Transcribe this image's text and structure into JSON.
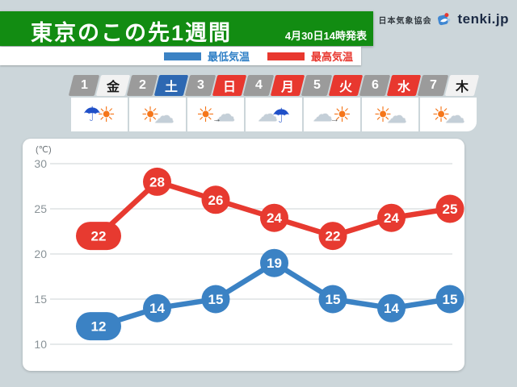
{
  "header": {
    "title": "東京のこの先1週間",
    "issued": "4月30日14時発表",
    "agency": "日本気象協会",
    "brand": "tenki.jp"
  },
  "legend": {
    "min_label": "最低気温",
    "max_label": "最高気温"
  },
  "colors": {
    "banner_green": "#128c12",
    "min_blue": "#3b82c4",
    "max_red": "#e73a30",
    "saturday_blue": "#2d68b2",
    "holiday_red": "#e8382f",
    "date_number_gray": "#9b9b9b"
  },
  "days": [
    {
      "date": "1",
      "weekday": "金",
      "type": "normal",
      "icon": "rain-then-sunny-icon",
      "icon_parts": [
        "umbrella",
        "sun"
      ]
    },
    {
      "date": "2",
      "weekday": "土",
      "type": "saturday",
      "icon": "sunny-partly-cloudy-icon",
      "icon_parts": [
        "sun",
        "cloud"
      ]
    },
    {
      "date": "3",
      "weekday": "日",
      "type": "holiday",
      "icon": "sunny-then-cloudy-icon",
      "icon_parts": [
        "sun",
        "arrow",
        "cloud"
      ]
    },
    {
      "date": "4",
      "weekday": "月",
      "type": "holiday",
      "icon": "cloudy-then-rain-icon",
      "icon_parts": [
        "cloud",
        "umbrella"
      ]
    },
    {
      "date": "5",
      "weekday": "火",
      "type": "holiday",
      "icon": "cloudy-then-sunny-icon",
      "icon_parts": [
        "cloud",
        "arrow",
        "sun"
      ]
    },
    {
      "date": "6",
      "weekday": "水",
      "type": "holiday",
      "icon": "sunny-partly-cloudy-icon",
      "icon_parts": [
        "sun",
        "cloud"
      ]
    },
    {
      "date": "7",
      "weekday": "木",
      "type": "normal",
      "icon": "sunny-partly-cloudy-icon",
      "icon_parts": [
        "sun",
        "cloud"
      ]
    }
  ],
  "chart_data": {
    "type": "line",
    "title": "東京のこの先1週間",
    "unit": "(℃)",
    "x_labels": [
      "1",
      "2",
      "3",
      "4",
      "5",
      "6",
      "7"
    ],
    "yticks": [
      30,
      25,
      20,
      15,
      10
    ],
    "ylim": [
      10,
      30
    ],
    "grid": true,
    "series": [
      {
        "name": "最高気温",
        "color": "#e73a30",
        "values": [
          22,
          28,
          26,
          24,
          22,
          24,
          25
        ]
      },
      {
        "name": "最低気温",
        "color": "#3b82c4",
        "values": [
          12,
          14,
          15,
          19,
          15,
          14,
          15
        ]
      }
    ]
  }
}
